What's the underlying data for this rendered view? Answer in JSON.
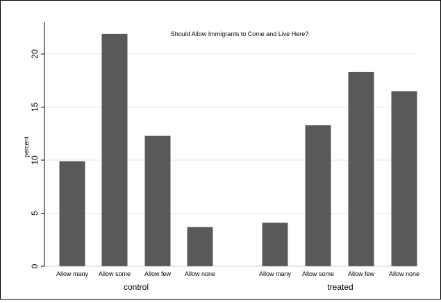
{
  "chart_data": {
    "type": "bar",
    "title": "Should Allow Immigrants to Come and Live Here?",
    "ylabel": "percent",
    "xlabel": "",
    "ylim": [
      0,
      23
    ],
    "yticks": [
      0,
      5,
      10,
      15,
      20
    ],
    "grid": true,
    "bar_color": "#595959",
    "groups": [
      {
        "name": "control",
        "categories": [
          "Allow many",
          "Allow some",
          "Allow few",
          "Allow none"
        ],
        "values": [
          9.9,
          21.9,
          12.3,
          3.7
        ]
      },
      {
        "name": "treated",
        "categories": [
          "Allow many",
          "Allow some",
          "Allow few",
          "Allow none"
        ],
        "values": [
          4.1,
          13.3,
          18.3,
          16.5
        ]
      }
    ]
  }
}
